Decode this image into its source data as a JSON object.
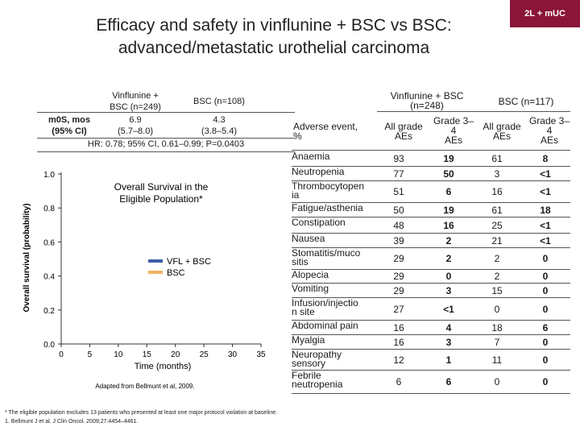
{
  "badge": "2L + mUC",
  "title_line1": "Efficacy and safety in vinflunine + BSC vs BSC:",
  "title_line2": "advanced/metastatic urothelial carcinoma",
  "mos": {
    "col1_head_l1": "Vinflunine +",
    "col1_head_l2": "BSC (n=249)",
    "col2_head": "BSC (n=108)",
    "row_label_l1": "m0S, mos",
    "row_label_l2": "(95% CI)",
    "col1_val_l1": "6.9",
    "col1_val_l2": "(5.7–8.0)",
    "col2_val_l1": "4.3",
    "col2_val_l2": "(3.8–5.4)",
    "hr": "HR: 0.78; 95% CI, 0.61–0.99; P=0.0403"
  },
  "chart_data": {
    "type": "line",
    "title_l1": "Overall Survival in the",
    "title_l2": "Eligible Population*",
    "xlabel": "Time (months)",
    "ylabel": "Overall survival (probability)",
    "xlim": [
      0,
      35
    ],
    "ylim": [
      0,
      1
    ],
    "xticks": [
      "0",
      "5",
      "10",
      "15",
      "20",
      "25",
      "30",
      "35"
    ],
    "yticks": [
      "0.0",
      "0.2",
      "0.4",
      "0.6",
      "0.8",
      "1.0"
    ],
    "legend_position": "center-right",
    "series": [
      {
        "name": "VFL + BSC",
        "color": "#3d5fa8",
        "x": [],
        "y": []
      },
      {
        "name": "BSC",
        "color": "#f0b363",
        "x": [],
        "y": []
      }
    ],
    "source_note": "Adapted from Bellmunt et al, 2009."
  },
  "ae_table": {
    "col_vfl_l1": "Vinflunine + BSC",
    "col_vfl_l2": "(n=248)",
    "col_bsc": "BSC (n=117)",
    "event_head_l1": "Adverse event,",
    "event_head_l2": "%",
    "all_grade": "All grade",
    "grade34_l1": "Grade 3–",
    "grade34_l2": "4",
    "aes": "AEs",
    "rows": [
      {
        "l1": "Anaemia",
        "l2": "",
        "l3": "",
        "v": [
          "93",
          "19",
          "61",
          "8"
        ]
      },
      {
        "l1": "Neutropenia",
        "l2": "",
        "l3": "",
        "v": [
          "77",
          "50",
          "3",
          "<1"
        ]
      },
      {
        "l1": "Thrombocytopen",
        "l2": "ia",
        "l3": "",
        "v": [
          "51",
          "6",
          "16",
          "<1"
        ]
      },
      {
        "l1": "Fatigue/asthenia",
        "l2": "",
        "l3": "",
        "v": [
          "50",
          "19",
          "61",
          "18"
        ]
      },
      {
        "l1": "Constipation",
        "l2": "",
        "l3": "",
        "v": [
          "48",
          "16",
          "25",
          "<1"
        ]
      },
      {
        "l1": "Nausea",
        "l2": "",
        "l3": "",
        "v": [
          "39",
          "2",
          "21",
          "<1"
        ]
      },
      {
        "l1": "Stomatitis/muco",
        "l2": "sitis",
        "l3": "",
        "v": [
          "29",
          "2",
          "2",
          "0"
        ]
      },
      {
        "l1": "Alopecia",
        "l2": "",
        "l3": "",
        "v": [
          "29",
          "0",
          "2",
          "0"
        ]
      },
      {
        "l1": "Vomiting",
        "l2": "",
        "l3": "",
        "v": [
          "29",
          "3",
          "15",
          "0"
        ]
      },
      {
        "l1": "Infusion/injectio",
        "l2": "n site",
        "l3": "",
        "v": [
          "27",
          "<1",
          "0",
          "0"
        ]
      },
      {
        "l1": "Abdominal pain",
        "l2": "",
        "l3": "",
        "v": [
          "16",
          "4",
          "18",
          "6"
        ]
      },
      {
        "l1": "Myalgia",
        "l2": "",
        "l3": "",
        "v": [
          "16",
          "3",
          "7",
          "0"
        ]
      },
      {
        "l1": "Neuropathy",
        "l2": "sensory",
        "l3": "",
        "v": [
          "12",
          "1",
          "11",
          "0"
        ]
      },
      {
        "l1": "Febrile",
        "l2": "neutropenia",
        "l3": "",
        "v": [
          "6",
          "6",
          "0",
          "0"
        ]
      }
    ]
  },
  "footnote1": "* The eligible population excludes 13 patients who presented at least one major protocol violation at baseline.",
  "footnote2": "1. Bellmunt J et al. J Clin Oncol. 2009;27:4454–4461."
}
